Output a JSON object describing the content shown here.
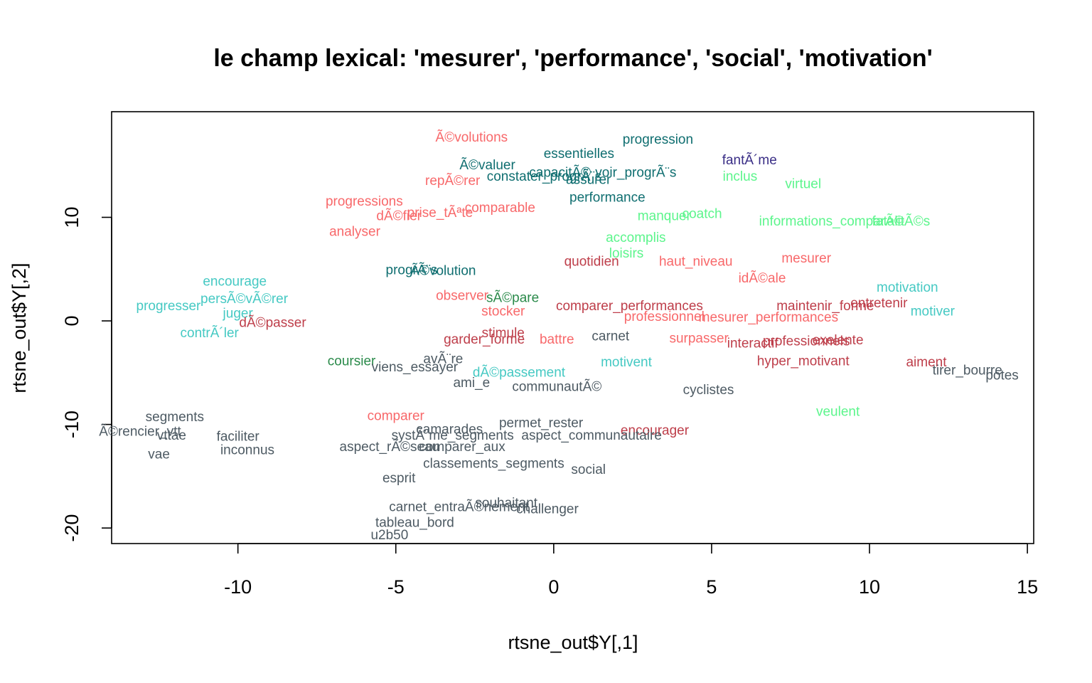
{
  "colors": {
    "red": "#f8686a",
    "darkred": "#be3e4a",
    "teal": "#0f6e70",
    "navy": "#3a2e86",
    "green": "#5cf58c",
    "cyan": "#45c9c3",
    "darkgreen": "#2a8a4a",
    "gray": "#4d5a63"
  },
  "chart_data": {
    "type": "scatter",
    "title": "le champ lexical: 'mesurer', 'performance', 'social', 'motivation'",
    "xlabel": "rtsne_out$Y[,1]",
    "ylabel": "rtsne_out$Y[,2]",
    "xlim": [
      -14.0,
      15.2
    ],
    "ylim": [
      -21.5,
      20.2
    ],
    "xticks": [
      -10,
      -5,
      0,
      5,
      10,
      15
    ],
    "yticks": [
      -20,
      -10,
      0,
      10
    ],
    "grid": false,
    "legend": "none",
    "points": [
      {
        "label": "Ã©volutions",
        "x": -2.6,
        "y": 17.8,
        "color": "red"
      },
      {
        "label": "progression",
        "x": 3.3,
        "y": 17.6,
        "color": "teal"
      },
      {
        "label": "essentielles",
        "x": 0.8,
        "y": 16.2,
        "color": "teal"
      },
      {
        "label": "fantÃ´me",
        "x": 6.2,
        "y": 15.6,
        "color": "navy"
      },
      {
        "label": "Ã©valuer",
        "x": -2.1,
        "y": 15.1,
        "color": "teal"
      },
      {
        "label": "capacitÃ©",
        "x": 0.2,
        "y": 14.4,
        "color": "teal"
      },
      {
        "label": "voir_progrÃ¨s",
        "x": 2.6,
        "y": 14.4,
        "color": "teal"
      },
      {
        "label": "constater_progrÃ¨s",
        "x": -0.3,
        "y": 14.0,
        "color": "teal"
      },
      {
        "label": "inclus",
        "x": 5.9,
        "y": 14.0,
        "color": "green"
      },
      {
        "label": "assurer",
        "x": 1.1,
        "y": 13.7,
        "color": "teal"
      },
      {
        "label": "repÃ©rer",
        "x": -3.2,
        "y": 13.6,
        "color": "red"
      },
      {
        "label": "virtuel",
        "x": 7.9,
        "y": 13.3,
        "color": "green"
      },
      {
        "label": "performance",
        "x": 1.7,
        "y": 12.0,
        "color": "teal"
      },
      {
        "label": "progressions",
        "x": -6.0,
        "y": 11.6,
        "color": "red"
      },
      {
        "label": "comparable",
        "x": -1.7,
        "y": 11.0,
        "color": "red"
      },
      {
        "label": "prise_tÃªte",
        "x": -3.6,
        "y": 10.5,
        "color": "red"
      },
      {
        "label": "coatch",
        "x": 4.7,
        "y": 10.4,
        "color": "green"
      },
      {
        "label": "dÃ©fier",
        "x": -4.9,
        "y": 10.2,
        "color": "red"
      },
      {
        "label": "manquer",
        "x": 3.5,
        "y": 10.2,
        "color": "green"
      },
      {
        "label": "informations_comparÃ©",
        "x": 8.8,
        "y": 9.7,
        "color": "green"
      },
      {
        "label": "fatalitÃ©s",
        "x": 11.0,
        "y": 9.7,
        "color": "green"
      },
      {
        "label": "analyser",
        "x": -6.3,
        "y": 8.7,
        "color": "red"
      },
      {
        "label": "accomplis",
        "x": 2.6,
        "y": 8.1,
        "color": "green"
      },
      {
        "label": "loisirs",
        "x": 2.3,
        "y": 6.6,
        "color": "green"
      },
      {
        "label": "quotidien",
        "x": 1.2,
        "y": 5.8,
        "color": "darkred"
      },
      {
        "label": "haut_niveau",
        "x": 4.5,
        "y": 5.8,
        "color": "red"
      },
      {
        "label": "mesurer",
        "x": 8.0,
        "y": 6.1,
        "color": "red"
      },
      {
        "label": "progrÃ¨s",
        "x": -4.5,
        "y": 5.0,
        "color": "teal"
      },
      {
        "label": "Ã©volution",
        "x": -3.5,
        "y": 4.9,
        "color": "teal"
      },
      {
        "label": "idÃ©ale",
        "x": 6.6,
        "y": 4.2,
        "color": "red"
      },
      {
        "label": "encourage",
        "x": -10.1,
        "y": 3.9,
        "color": "cyan"
      },
      {
        "label": "motivation",
        "x": 11.2,
        "y": 3.3,
        "color": "cyan"
      },
      {
        "label": "observer",
        "x": -2.9,
        "y": 2.5,
        "color": "red"
      },
      {
        "label": "sÃ©pare",
        "x": -1.3,
        "y": 2.3,
        "color": "darkgreen"
      },
      {
        "label": "persÃ©vÃ©rer",
        "x": -9.8,
        "y": 2.2,
        "color": "cyan"
      },
      {
        "label": "comparer_performances",
        "x": 2.4,
        "y": 1.5,
        "color": "darkred"
      },
      {
        "label": "maintenir_forme",
        "x": 8.6,
        "y": 1.5,
        "color": "darkred"
      },
      {
        "label": "entretenir",
        "x": 10.3,
        "y": 1.8,
        "color": "darkred"
      },
      {
        "label": "progresser",
        "x": -12.2,
        "y": 1.5,
        "color": "cyan"
      },
      {
        "label": "stocker",
        "x": -1.6,
        "y": 1.0,
        "color": "red"
      },
      {
        "label": "motiver",
        "x": 12.0,
        "y": 1.0,
        "color": "cyan"
      },
      {
        "label": "juger",
        "x": -10.0,
        "y": 0.8,
        "color": "cyan"
      },
      {
        "label": "professionnel",
        "x": 3.5,
        "y": 0.5,
        "color": "red"
      },
      {
        "label": "mesurer_performances",
        "x": 6.8,
        "y": 0.4,
        "color": "red"
      },
      {
        "label": "dÃ©passer",
        "x": -8.9,
        "y": -0.1,
        "color": "darkred"
      },
      {
        "label": "contrÃ´ler",
        "x": -10.9,
        "y": -1.1,
        "color": "cyan"
      },
      {
        "label": "stimule",
        "x": -1.6,
        "y": -1.1,
        "color": "darkred"
      },
      {
        "label": "carnet",
        "x": 1.8,
        "y": -1.4,
        "color": "gray"
      },
      {
        "label": "garder_forme",
        "x": -2.2,
        "y": -1.7,
        "color": "darkred"
      },
      {
        "label": "battre",
        "x": 0.1,
        "y": -1.7,
        "color": "red"
      },
      {
        "label": "surpasser",
        "x": 4.6,
        "y": -1.6,
        "color": "red"
      },
      {
        "label": "interactif",
        "x": 6.3,
        "y": -2.1,
        "color": "darkred"
      },
      {
        "label": "professionnels",
        "x": 8.0,
        "y": -1.9,
        "color": "darkred"
      },
      {
        "label": "exelente",
        "x": 9.0,
        "y": -1.8,
        "color": "darkred"
      },
      {
        "label": "avÃ¨re",
        "x": -3.5,
        "y": -3.6,
        "color": "gray"
      },
      {
        "label": "coursier",
        "x": -6.4,
        "y": -3.8,
        "color": "darkgreen"
      },
      {
        "label": "motivent",
        "x": 2.3,
        "y": -3.9,
        "color": "cyan"
      },
      {
        "label": "hyper_motivant",
        "x": 7.9,
        "y": -3.8,
        "color": "darkred"
      },
      {
        "label": "aiment",
        "x": 11.8,
        "y": -3.9,
        "color": "darkred"
      },
      {
        "label": "viens_essayer",
        "x": -4.4,
        "y": -4.4,
        "color": "gray"
      },
      {
        "label": "tirer_bourre",
        "x": 13.1,
        "y": -4.7,
        "color": "gray"
      },
      {
        "label": "potes",
        "x": 14.2,
        "y": -5.2,
        "color": "gray"
      },
      {
        "label": "dÃ©passement",
        "x": -1.1,
        "y": -4.9,
        "color": "cyan"
      },
      {
        "label": "ami_e",
        "x": -2.6,
        "y": -5.9,
        "color": "gray"
      },
      {
        "label": "communautÃ©",
        "x": 0.1,
        "y": -6.3,
        "color": "gray"
      },
      {
        "label": "cyclistes",
        "x": 4.9,
        "y": -6.6,
        "color": "gray"
      },
      {
        "label": "veulent",
        "x": 9.0,
        "y": -8.7,
        "color": "green"
      },
      {
        "label": "segments",
        "x": -12.0,
        "y": -9.2,
        "color": "gray"
      },
      {
        "label": "comparer",
        "x": -5.0,
        "y": -9.1,
        "color": "red"
      },
      {
        "label": "permet_rester",
        "x": -0.4,
        "y": -9.8,
        "color": "gray"
      },
      {
        "label": "camarades",
        "x": -3.3,
        "y": -10.4,
        "color": "gray"
      },
      {
        "label": "encourager",
        "x": 3.2,
        "y": -10.5,
        "color": "darkred"
      },
      {
        "label": "Ã©rencier_vtt",
        "x": -13.1,
        "y": -10.6,
        "color": "gray"
      },
      {
        "label": "systÃ¨me_segments",
        "x": -3.2,
        "y": -11.0,
        "color": "gray"
      },
      {
        "label": "aspect_communautaire",
        "x": 1.2,
        "y": -11.0,
        "color": "gray"
      },
      {
        "label": "vttae",
        "x": -12.1,
        "y": -11.0,
        "color": "gray"
      },
      {
        "label": "faciliter",
        "x": -10.0,
        "y": -11.1,
        "color": "gray"
      },
      {
        "label": "aspect_rÃ©seau",
        "x": -5.2,
        "y": -12.1,
        "color": "gray"
      },
      {
        "label": "comparer_aux",
        "x": -2.9,
        "y": -12.1,
        "color": "gray"
      },
      {
        "label": "inconnus",
        "x": -9.7,
        "y": -12.4,
        "color": "gray"
      },
      {
        "label": "vae",
        "x": -12.5,
        "y": -12.8,
        "color": "gray"
      },
      {
        "label": "classements_segments",
        "x": -1.9,
        "y": -13.7,
        "color": "gray"
      },
      {
        "label": "social",
        "x": 1.1,
        "y": -14.3,
        "color": "gray"
      },
      {
        "label": "esprit",
        "x": -4.9,
        "y": -15.1,
        "color": "gray"
      },
      {
        "label": "souhaitant",
        "x": -1.5,
        "y": -17.5,
        "color": "gray"
      },
      {
        "label": "carnet_entraÃ®nement",
        "x": -3.0,
        "y": -17.9,
        "color": "gray"
      },
      {
        "label": "challenger",
        "x": -0.2,
        "y": -18.1,
        "color": "gray"
      },
      {
        "label": "tableau_bord",
        "x": -4.4,
        "y": -19.4,
        "color": "gray"
      },
      {
        "label": "u2b50",
        "x": -5.2,
        "y": -20.6,
        "color": "gray"
      }
    ]
  }
}
